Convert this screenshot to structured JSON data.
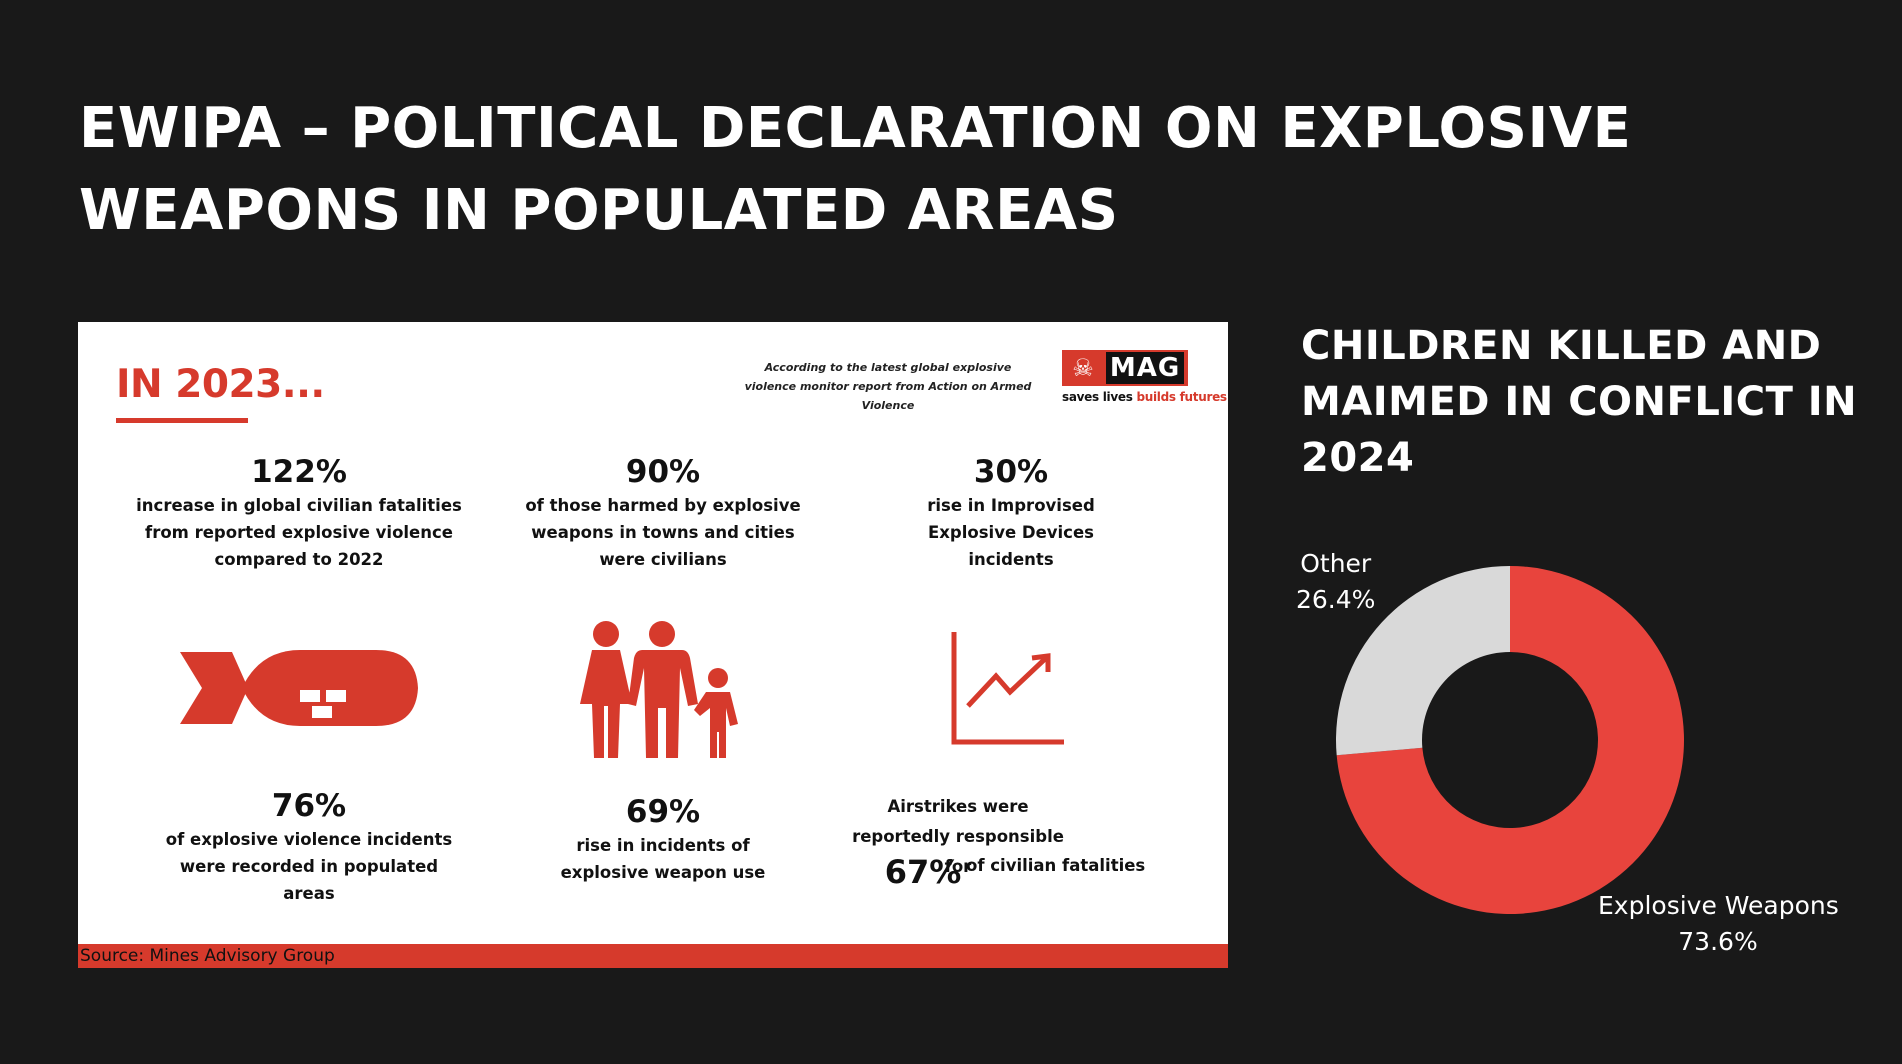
{
  "slide": {
    "title": "EWIPA – POLITICAL DECLARATION ON EXPLOSIVE WEAPONS IN POPULATED AREAS"
  },
  "infographic": {
    "heading": "IN 2023...",
    "note": "According to the latest global explosive violence monitor report from Action on Armed Violence",
    "logo": {
      "wordmark": "MAG",
      "tagline_a": "saves lives ",
      "tagline_b": "builds futures",
      "icon": "skull-crossbones-icon"
    },
    "stats": [
      {
        "number": "122%",
        "text": "increase in global civilian fatalities from reported explosive violence compared to 2022"
      },
      {
        "number": "90%",
        "text": "of those harmed by explosive weapons in towns and cities were civilians"
      },
      {
        "number": "30%",
        "text": "rise in Improvised Explosive Devices incidents"
      },
      {
        "number": "76%",
        "text": "of explosive violence incidents were recorded in populated areas"
      },
      {
        "number": "69%",
        "text": "rise in incidents of explosive weapon use"
      },
      {
        "number": "67%",
        "text_before": "Airstrikes were reportedly responsible for",
        "text_after": "of civilian fatalities"
      }
    ],
    "icons": [
      "bomb-icon",
      "family-icon",
      "rising-chart-icon"
    ],
    "source": "Source: Mines Advisory Group",
    "accent_color": "#d63a2c"
  },
  "chart_data": {
    "type": "pie",
    "title": "CHILDREN KILLED AND MAIMED IN CONFLICT IN 2024",
    "donut": true,
    "categories": [
      "Explosive Weapons",
      "Other"
    ],
    "values": [
      73.6,
      26.4
    ],
    "value_labels": [
      "73.6%",
      "26.4%"
    ],
    "colors": [
      "#e8443d",
      "#d9d9d9"
    ]
  }
}
